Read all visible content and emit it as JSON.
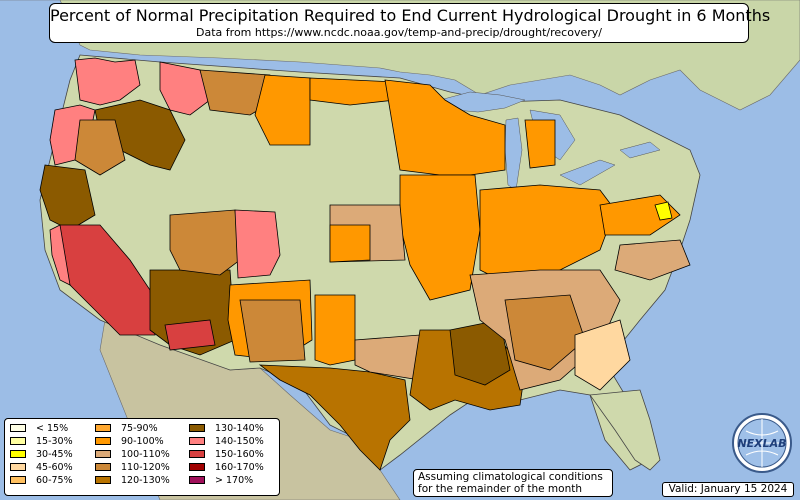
{
  "title": "Percent of Normal Precipitation Required to End Current Hydrological Drought in 6 Months",
  "subtitle": "Data from https://www.ncdc.noaa.gov/temp-and-precip/drought/recovery/",
  "note_line1": "Assuming climatological conditions",
  "note_line2": "for the remainder of the month",
  "valid": "Valid: January 15 2024",
  "logo_text": "NEXLAB",
  "legend": [
    {
      "label": "< 15%",
      "color": "#ffffe6"
    },
    {
      "label": "15-30%",
      "color": "#ffffa0"
    },
    {
      "label": "30-45%",
      "color": "#ffff00"
    },
    {
      "label": "45-60%",
      "color": "#ffd8a0"
    },
    {
      "label": "60-75%",
      "color": "#ffc060"
    },
    {
      "label": "75-90%",
      "color": "#ffa830"
    },
    {
      "label": "90-100%",
      "color": "#ff9800"
    },
    {
      "label": "100-110%",
      "color": "#dcaa78"
    },
    {
      "label": "110-120%",
      "color": "#cc8838"
    },
    {
      "label": "120-130%",
      "color": "#b87300"
    },
    {
      "label": "130-140%",
      "color": "#8b5a00"
    },
    {
      "label": "140-150%",
      "color": "#ff8080"
    },
    {
      "label": "150-160%",
      "color": "#d84040"
    },
    {
      "label": "160-170%",
      "color": "#a00000"
    },
    {
      "label": "> 170%",
      "color": "#a0105a"
    }
  ]
}
